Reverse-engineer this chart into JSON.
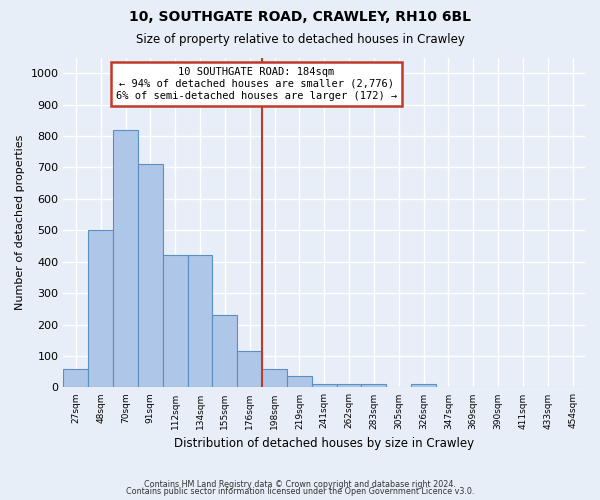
{
  "title1": "10, SOUTHGATE ROAD, CRAWLEY, RH10 6BL",
  "title2": "Size of property relative to detached houses in Crawley",
  "xlabel": "Distribution of detached houses by size in Crawley",
  "ylabel": "Number of detached properties",
  "bin_labels": [
    "27sqm",
    "48sqm",
    "70sqm",
    "91sqm",
    "112sqm",
    "134sqm",
    "155sqm",
    "176sqm",
    "198sqm",
    "219sqm",
    "241sqm",
    "262sqm",
    "283sqm",
    "305sqm",
    "326sqm",
    "347sqm",
    "369sqm",
    "390sqm",
    "411sqm",
    "433sqm",
    "454sqm"
  ],
  "bar_values": [
    60,
    500,
    820,
    710,
    420,
    420,
    230,
    115,
    60,
    35,
    12,
    10,
    10,
    0,
    10,
    0,
    0,
    0,
    0,
    0,
    0
  ],
  "bar_color": "#aec6e8",
  "bar_edge_color": "#5a8fc2",
  "subject_line_color": "#c0392b",
  "annotation_text": "10 SOUTHGATE ROAD: 184sqm\n← 94% of detached houses are smaller (2,776)\n6% of semi-detached houses are larger (172) →",
  "annotation_box_color": "#c0392b",
  "bg_color": "#e8eef7",
  "grid_color": "#ffffff",
  "footer1": "Contains HM Land Registry data © Crown copyright and database right 2024.",
  "footer2": "Contains public sector information licensed under the Open Government Licence v3.0.",
  "ylim": [
    0,
    1050
  ],
  "yticks": [
    0,
    100,
    200,
    300,
    400,
    500,
    600,
    700,
    800,
    900,
    1000
  ]
}
